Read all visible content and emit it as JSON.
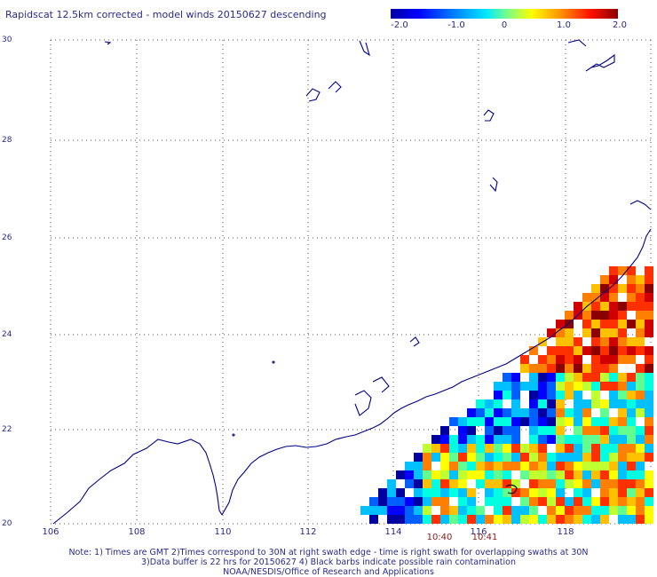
{
  "title": "Rapidscat 12.5km corrected - model winds 20150627 descending",
  "colorbar": {
    "ticks": [
      "-2.0",
      "-1.0",
      "0",
      "1.0",
      "2.0"
    ],
    "colors": [
      "#0000a0",
      "#0000ff",
      "#0060ff",
      "#00c0ff",
      "#00ffe0",
      "#60ff90",
      "#c0ff30",
      "#ffff00",
      "#ffc000",
      "#ff8000",
      "#ff3000",
      "#d00000",
      "#8b0000"
    ]
  },
  "axes": {
    "lat_labels": [
      "30",
      "28",
      "26",
      "24",
      "22",
      "20"
    ],
    "lon_labels": [
      "106",
      "108",
      "110",
      "112",
      "114",
      "116",
      "118"
    ]
  },
  "swath_times": [
    "10:40",
    "10:41"
  ],
  "notes": {
    "line1": "Note: 1) Times are GMT 2)Times correspond to 30N at right swath edge - time is right swath for overlapping swaths at 30N",
    "line2": "3)Data buffer is 22 hrs for 20150627 4) Black barbs indicate possible rain contamination",
    "line3": "NOAA/NESDIS/Office of Research and Applications"
  }
}
